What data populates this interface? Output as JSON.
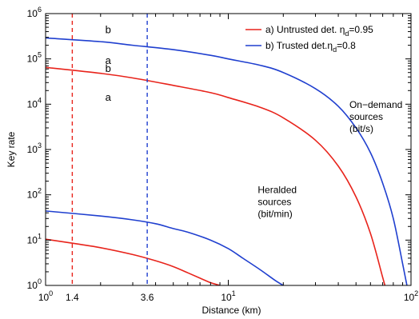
{
  "chart_data": {
    "type": "line",
    "title": "",
    "xlabel": "Distance (km)",
    "ylabel": "Key rate",
    "x_scale": "log",
    "y_scale": "log",
    "xlim": [
      1,
      100
    ],
    "ylim": [
      1,
      1000000
    ],
    "grid": false,
    "x_ticks": [
      {
        "value": 1,
        "base": "10",
        "exp": "0"
      },
      {
        "value": 10,
        "base": "10",
        "exp": "1"
      },
      {
        "value": 100,
        "base": "10",
        "exp": "2"
      }
    ],
    "x_extra_ticks": [
      {
        "value": 1.4,
        "label": "1.4"
      },
      {
        "value": 3.6,
        "label": "3.6"
      }
    ],
    "y_ticks": [
      {
        "value": 1,
        "base": "10",
        "exp": "0"
      },
      {
        "value": 10,
        "base": "10",
        "exp": "1"
      },
      {
        "value": 100,
        "base": "10",
        "exp": "2"
      },
      {
        "value": 1000,
        "base": "10",
        "exp": "3"
      },
      {
        "value": 10000,
        "base": "10",
        "exp": "4"
      },
      {
        "value": 100000,
        "base": "10",
        "exp": "5"
      },
      {
        "value": 1000000,
        "base": "10",
        "exp": "6"
      }
    ],
    "legend": {
      "placement": "top-right",
      "entries": [
        {
          "series": "a",
          "color": "#e8231b",
          "prefix": "a) Untrusted det. ",
          "eta": "η",
          "sub": "d",
          "suffix": "=0.95"
        },
        {
          "series": "b",
          "color": "#1f3fcf",
          "prefix": "b) Trusted det.",
          "eta": "η",
          "sub": "d",
          "suffix": "=0.8"
        }
      ]
    },
    "vertical_lines": [
      {
        "x": 1.4,
        "color": "#e8231b",
        "style": "dashed"
      },
      {
        "x": 3.6,
        "color": "#1f3fcf",
        "style": "dashed"
      }
    ],
    "series": [
      {
        "label": "b",
        "group": "on-demand",
        "color": "#1f3fcf",
        "x": [
          1,
          2,
          3,
          5,
          8,
          10,
          15,
          20,
          30,
          40,
          50,
          60,
          70,
          80,
          90,
          95
        ],
        "y": [
          290000,
          240000,
          200000,
          160000,
          120000,
          100000,
          72000,
          50000,
          22000,
          9000,
          3000,
          850,
          180,
          30,
          3,
          1
        ]
      },
      {
        "label": "a",
        "group": "on-demand",
        "color": "#e8231b",
        "x": [
          1,
          2,
          3,
          5,
          8,
          10,
          15,
          20,
          30,
          40,
          50,
          60,
          70,
          72
        ],
        "y": [
          65000,
          48000,
          38000,
          26000,
          18000,
          14000,
          8500,
          5000,
          1600,
          430,
          90,
          14,
          1.5,
          1
        ]
      },
      {
        "label": "b",
        "group": "heralded",
        "color": "#1f3fcf",
        "x": [
          1,
          2,
          3,
          4,
          5,
          6,
          8,
          10,
          12,
          15,
          18,
          20
        ],
        "y": [
          44,
          34,
          28,
          23,
          18,
          15,
          10,
          6.5,
          4,
          2.2,
          1.3,
          1
        ]
      },
      {
        "label": "a",
        "group": "heralded",
        "color": "#e8231b",
        "x": [
          1,
          1.5,
          2,
          3,
          4,
          5,
          6,
          7,
          8,
          9
        ],
        "y": [
          10.5,
          8.2,
          6.8,
          4.8,
          3.5,
          2.6,
          1.9,
          1.45,
          1.15,
          1
        ]
      }
    ],
    "curve_labels": [
      {
        "text": "b",
        "x": 2.2,
        "y": 370000
      },
      {
        "text": "a",
        "x": 2.2,
        "y": 78000
      },
      {
        "text": "b",
        "x": 2.2,
        "y": 52000
      },
      {
        "text": "a",
        "x": 2.2,
        "y": 12000
      }
    ],
    "annotations": [
      {
        "lines": [
          "On−demand",
          "sources",
          "(bit/s)"
        ],
        "x": 46,
        "y": 8200,
        "anchor": "start"
      },
      {
        "lines": [
          "Heralded",
          "sources",
          "(bit/min)"
        ],
        "x": 14.5,
        "y": 110,
        "anchor": "start"
      }
    ]
  }
}
